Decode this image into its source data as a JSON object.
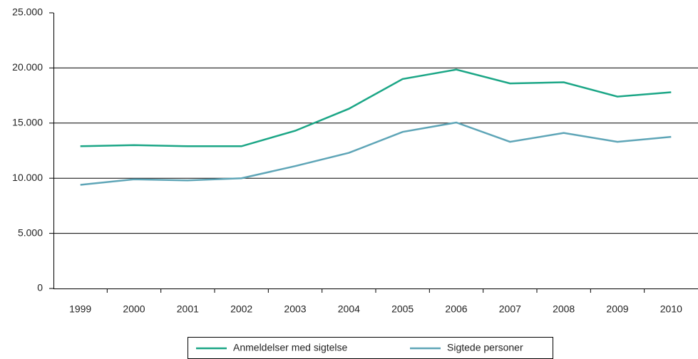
{
  "chart_data": {
    "type": "line",
    "categories": [
      "1999",
      "2000",
      "2001",
      "2002",
      "2003",
      "2004",
      "2005",
      "2006",
      "2007",
      "2008",
      "2009",
      "2010"
    ],
    "series": [
      {
        "name": "Anmeldelser med sigtelse",
        "color": "#1ba686",
        "values": [
          12900,
          13000,
          12900,
          12900,
          14300,
          16300,
          19000,
          19850,
          18600,
          18700,
          17400,
          17800
        ]
      },
      {
        "name": "Sigtede personer",
        "color": "#5ea5b7",
        "values": [
          9400,
          9900,
          9800,
          10000,
          11100,
          12300,
          14200,
          15050,
          13300,
          14100,
          13300,
          13750
        ]
      }
    ],
    "ylim": [
      0,
      25000
    ],
    "yticks": [
      0,
      {
        "value": 5000,
        "label": "5.000"
      },
      {
        "value": 10000,
        "label": "10.000"
      },
      {
        "value": 15000,
        "label": "15.000"
      },
      {
        "value": 20000,
        "label": "20.000"
      },
      {
        "value": 25000,
        "label": "25.000"
      }
    ],
    "grid": true,
    "legend": "bottom"
  }
}
